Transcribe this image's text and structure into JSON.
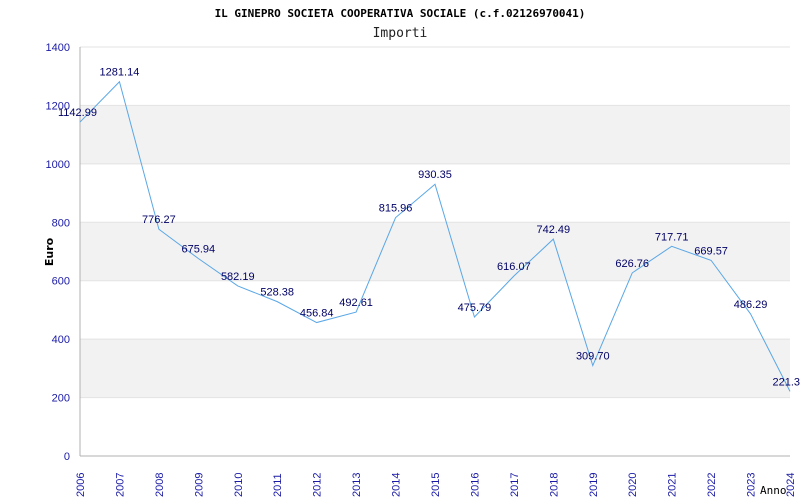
{
  "chart_data": {
    "type": "line",
    "title": "IL GINEPRO SOCIETA COOPERATIVA SOCIALE (c.f.02126970041)",
    "subtitle": "Importi",
    "xlabel": "Anno",
    "ylabel": "Euro",
    "ylim": [
      0,
      1400
    ],
    "yticks": [
      0,
      200,
      400,
      600,
      800,
      1000,
      1200,
      1400
    ],
    "grid": "alternating horizontal bands",
    "colors": {
      "line": "#5aa7e6",
      "band": "#f2f2f2",
      "tick_text": "#1a1aa6",
      "label_text": "#000066"
    },
    "categories": [
      "2006",
      "2007",
      "2008",
      "2009",
      "2010",
      "2011",
      "2012",
      "2013",
      "2014",
      "2015",
      "2016",
      "2017",
      "2018",
      "2019",
      "2020",
      "2021",
      "2022",
      "2023",
      "2024"
    ],
    "series": [
      {
        "values": [
          1142.99,
          1281.14,
          776.27,
          675.94,
          582.19,
          528.38,
          456.84,
          492.61,
          815.96,
          930.35,
          475.79,
          616.07,
          742.49,
          309.7,
          626.76,
          717.71,
          669.57,
          486.29,
          221.3
        ],
        "labels": [
          "1142.99",
          "1281.14",
          "776.27",
          "675.94",
          "582.19",
          "528.38",
          "456.84",
          "492.61",
          "815.96",
          "930.35",
          "475.79",
          "616.07",
          "742.49",
          "309.70",
          "626.76",
          "717.71",
          "669.57",
          "486.29",
          "221.3"
        ]
      }
    ]
  }
}
